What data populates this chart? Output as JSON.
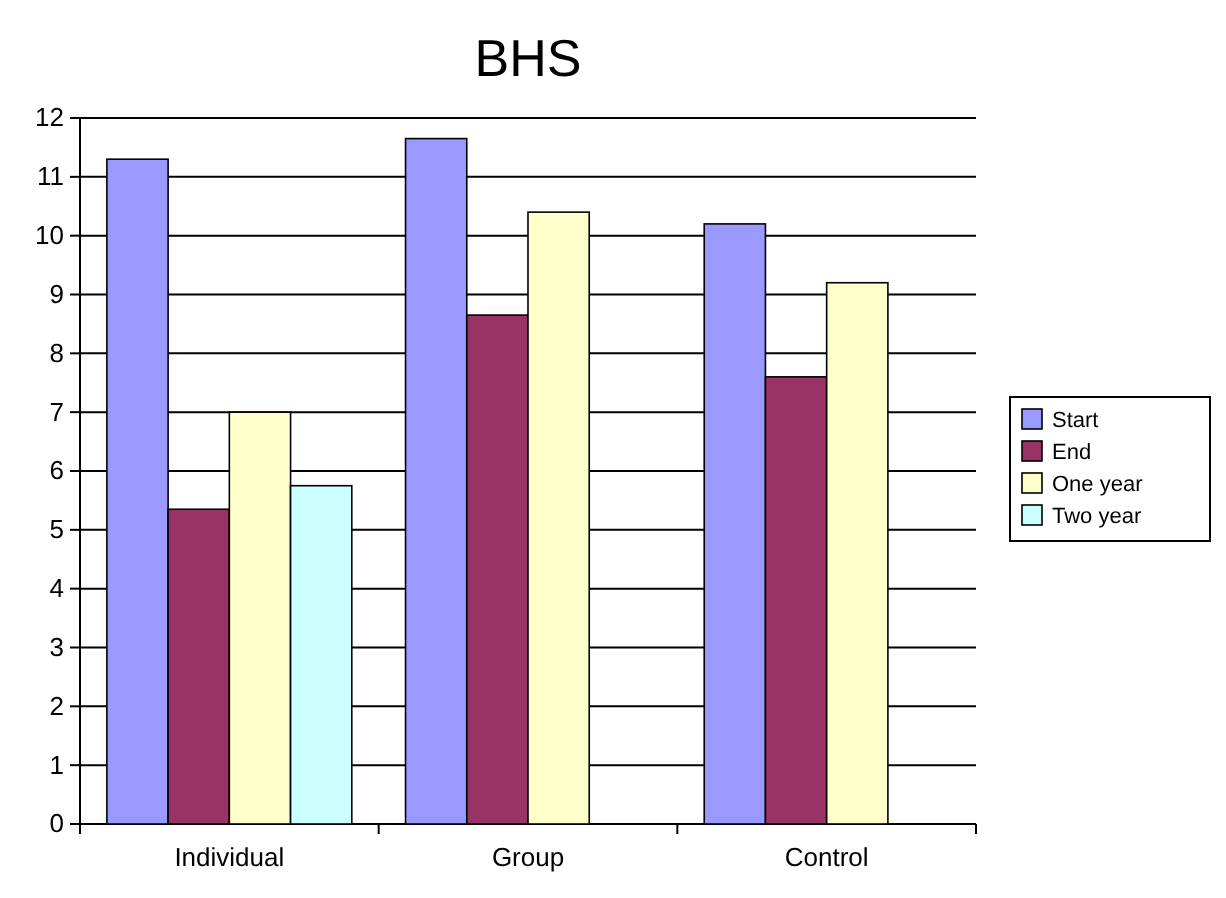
{
  "chart_data": {
    "type": "bar",
    "title": "BHS",
    "categories": [
      "Individual",
      "Group",
      "Control"
    ],
    "series": [
      {
        "name": "Start",
        "color": "#9999ff",
        "values": [
          11.3,
          11.65,
          10.2
        ]
      },
      {
        "name": "End",
        "color": "#993366",
        "values": [
          5.35,
          8.65,
          7.6
        ]
      },
      {
        "name": "One year",
        "color": "#ffffcc",
        "values": [
          7.0,
          10.4,
          9.2
        ]
      },
      {
        "name": "Two year",
        "color": "#ccffff",
        "values": [
          5.75,
          null,
          null
        ]
      }
    ],
    "ylim": [
      0,
      12
    ],
    "yticks": [
      0,
      1,
      2,
      3,
      4,
      5,
      6,
      7,
      8,
      9,
      10,
      11,
      12
    ],
    "grid": "y",
    "legend": "right"
  }
}
